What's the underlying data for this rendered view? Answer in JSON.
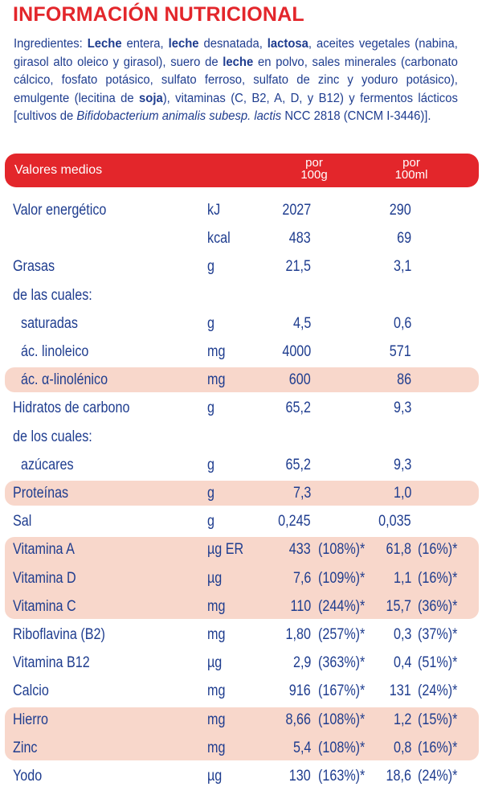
{
  "title": "INFORMACIÓN NUTRICIONAL",
  "ingredients": {
    "segments": [
      {
        "t": "Ingredientes: "
      },
      {
        "t": "Leche",
        "b": true
      },
      {
        "t": " entera, "
      },
      {
        "t": "leche",
        "b": true
      },
      {
        "t": " desnatada, "
      },
      {
        "t": "lactosa",
        "b": true
      },
      {
        "t": ", aceites vegetales (nabina, girasol alto oleico y girasol), suero de "
      },
      {
        "t": "leche",
        "b": true
      },
      {
        "t": " en polvo, sales minerales (carbonato cálcico, fosfato potásico, sulfato ferroso, sulfato de zinc y yoduro potásico), emulgente (lecitina de "
      },
      {
        "t": "soja",
        "b": true
      },
      {
        "t": "), vitaminas (C, B2, A, D, y B12) y fermentos lácticos [cultivos de "
      },
      {
        "t": "Bifidobacterium animalis subesp. lactis",
        "i": true
      },
      {
        "t": " NCC 2818 (CNCM I-3446)]."
      }
    ]
  },
  "header": {
    "label": "Valores medios",
    "col1_line1": "por",
    "col1_line2": "100g",
    "col2_line1": "por",
    "col2_line2": "100ml"
  },
  "highlight_color": "#f8d7cb",
  "accent_color": "#e3262b",
  "text_color": "#1f3d8f",
  "rows": [
    {
      "name": "Valor energético",
      "unit": "kJ",
      "v1": "2027",
      "p1": "",
      "v2": "290",
      "p2": ""
    },
    {
      "name": "",
      "unit": "kcal",
      "v1": "483",
      "p1": "",
      "v2": "69",
      "p2": ""
    },
    {
      "name": "Grasas",
      "unit": "g",
      "v1": "21,5",
      "p1": "",
      "v2": "3,1",
      "p2": ""
    },
    {
      "name": "de las cuales:",
      "unit": "",
      "v1": "",
      "p1": "",
      "v2": "",
      "p2": ""
    },
    {
      "name": "saturadas",
      "indent": true,
      "unit": "g",
      "v1": "4,5",
      "p1": "",
      "v2": "0,6",
      "p2": ""
    },
    {
      "name": "ác. linoleico",
      "indent": true,
      "unit": "mg",
      "v1": "4000",
      "p1": "",
      "v2": "571",
      "p2": ""
    },
    {
      "name": "ác. α-linolénico",
      "indent": true,
      "unit": "mg",
      "v1": "600",
      "p1": "",
      "v2": "86",
      "p2": ""
    },
    {
      "name": "Hidratos de carbono",
      "unit": "g",
      "v1": "65,2",
      "p1": "",
      "v2": "9,3",
      "p2": ""
    },
    {
      "name": "de los cuales:",
      "unit": "",
      "v1": "",
      "p1": "",
      "v2": "",
      "p2": ""
    },
    {
      "name": "azúcares",
      "indent": true,
      "unit": "g",
      "v1": "65,2",
      "p1": "",
      "v2": "9,3",
      "p2": ""
    },
    {
      "name": "Proteínas",
      "unit": "g",
      "v1": "7,3",
      "p1": "",
      "v2": "1,0",
      "p2": ""
    },
    {
      "name": "Sal",
      "unit": "g",
      "v1": "0,245",
      "p1": "",
      "v2": "0,035",
      "p2": ""
    },
    {
      "name": "Vitamina A",
      "unit": "µg ER",
      "v1": "433",
      "p1": "(108%)*",
      "v2": "61,8",
      "p2": "(16%)*"
    },
    {
      "name": "Vitamina D",
      "unit": "µg",
      "v1": "7,6",
      "p1": "(109%)*",
      "v2": "1,1",
      "p2": "(16%)*"
    },
    {
      "name": "Vitamina C",
      "unit": "mg",
      "v1": "110",
      "p1": "(244%)*",
      "v2": "15,7",
      "p2": "(36%)*"
    },
    {
      "name": "Riboflavina (B2)",
      "unit": "mg",
      "v1": "1,80",
      "p1": "(257%)*",
      "v2": "0,3",
      "p2": "(37%)*"
    },
    {
      "name": "Vitamina B12",
      "unit": "µg",
      "v1": "2,9",
      "p1": "(363%)*",
      "v2": "0,4",
      "p2": "(51%)*"
    },
    {
      "name": "Calcio",
      "unit": "mg",
      "v1": "916",
      "p1": "(167%)*",
      "v2": "131",
      "p2": "(24%)*"
    },
    {
      "name": "Hierro",
      "unit": "mg",
      "v1": "8,66",
      "p1": "(108%)*",
      "v2": "1,2",
      "p2": "(15%)*"
    },
    {
      "name": "Zinc",
      "unit": "mg",
      "v1": "5,4",
      "p1": "(108%)*",
      "v2": "0,8",
      "p2": "(16%)*"
    },
    {
      "name": "Yodo",
      "unit": "µg",
      "v1": "130",
      "p1": "(163%)*",
      "v2": "18,6",
      "p2": "(24%)*"
    }
  ]
}
